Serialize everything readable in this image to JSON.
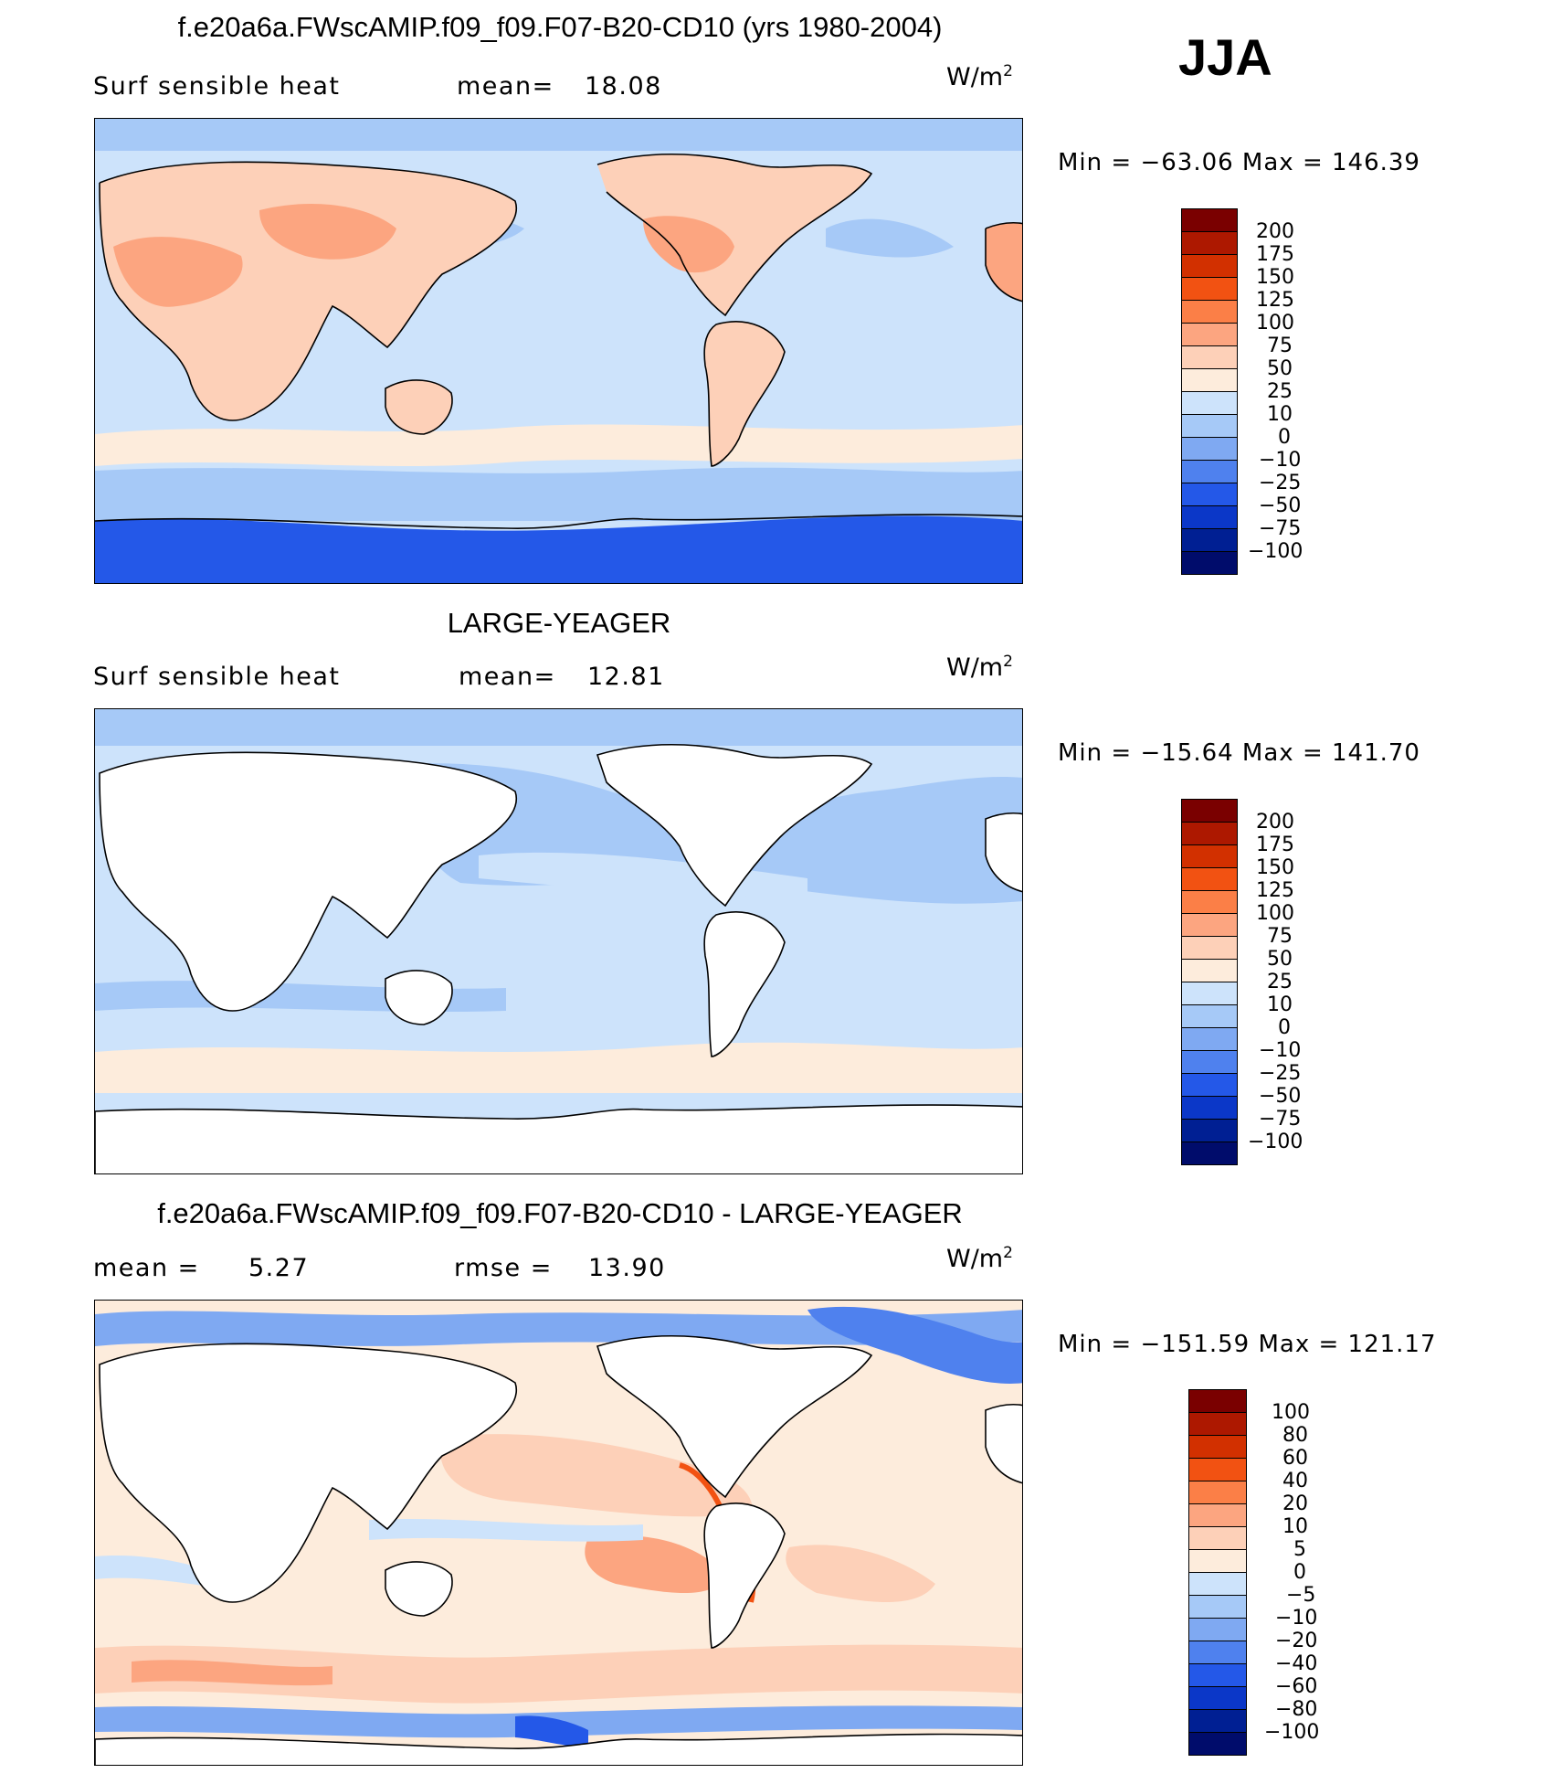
{
  "season": "JJA",
  "units_base": "W/m",
  "units_exp": "2",
  "panels": [
    {
      "title": "f.e20a6a.FWscAMIP.f09_f09.F07-B20-CD10 (yrs 1980-2004)",
      "variable": "Surf sensible heat",
      "stat1_label": "mean=",
      "stat1_value": "18.08",
      "minmax": "Min = −63.06 Max = 146.39",
      "colorbar_levels": [
        "200",
        "175",
        "150",
        "125",
        "100",
        "75",
        "50",
        "25",
        "10",
        "0",
        "−10",
        "−25",
        "−50",
        "−75",
        "−100"
      ],
      "colorbar_colors": [
        "#7a0000",
        "#ad1800",
        "#d23000",
        "#f25212",
        "#fb7f47",
        "#fca580",
        "#fdd0b8",
        "#fdecdc",
        "#cde3fb",
        "#a6c9f7",
        "#7fa9f2",
        "#4f81ee",
        "#2458e8",
        "#0b37c8",
        "#001f93",
        "#000c6b"
      ],
      "land_fill": true
    },
    {
      "title": "LARGE-YEAGER",
      "variable": "Surf sensible heat",
      "stat1_label": "mean=",
      "stat1_value": "12.81",
      "minmax": "Min = −15.64 Max = 141.70",
      "colorbar_levels": [
        "200",
        "175",
        "150",
        "125",
        "100",
        "75",
        "50",
        "25",
        "10",
        "0",
        "−10",
        "−25",
        "−50",
        "−75",
        "−100"
      ],
      "colorbar_colors": [
        "#7a0000",
        "#ad1800",
        "#d23000",
        "#f25212",
        "#fb7f47",
        "#fca580",
        "#fdd0b8",
        "#fdecdc",
        "#cde3fb",
        "#a6c9f7",
        "#7fa9f2",
        "#4f81ee",
        "#2458e8",
        "#0b37c8",
        "#001f93",
        "#000c6b"
      ],
      "land_fill": false
    },
    {
      "title": "f.e20a6a.FWscAMIP.f09_f09.F07-B20-CD10 - LARGE-YEAGER",
      "stat1_label": "mean =",
      "stat1_value": "5.27",
      "stat2_label": "rmse =",
      "stat2_value": "13.90",
      "minmax": "Min = −151.59 Max = 121.17",
      "colorbar_levels": [
        "100",
        "80",
        "60",
        "40",
        "20",
        "10",
        "5",
        "0",
        "−5",
        "−10",
        "−20",
        "−40",
        "−60",
        "−80",
        "−100"
      ],
      "colorbar_colors": [
        "#7a0000",
        "#ad1800",
        "#d23000",
        "#f25212",
        "#fb7f47",
        "#fca580",
        "#fdd0b8",
        "#fdecdc",
        "#cde3fb",
        "#a6c9f7",
        "#7fa9f2",
        "#4f81ee",
        "#2458e8",
        "#0b37c8",
        "#001f93",
        "#000c6b"
      ],
      "land_fill": false
    }
  ]
}
